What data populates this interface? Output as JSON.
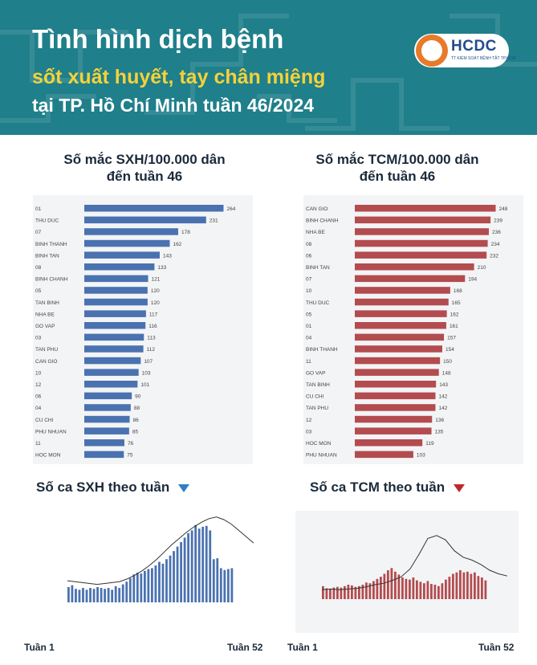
{
  "header": {
    "line1": "Tình hình dịch bệnh",
    "line2": "sốt xuất huyết, tay chân miệng",
    "line3": "tại TP. Hồ Chí Minh tuần 46/2024",
    "logo_text": "HCDC",
    "logo_subtext": "TT KIỂM SOÁT BỆNH TẬT TP.HCM"
  },
  "sections": {
    "sxh_rate_title_1": "Số mắc SXH/100.000 dân",
    "sxh_rate_title_2": "đến tuần 46",
    "tcm_rate_title_1": "Số mắc TCM/100.000 dân",
    "tcm_rate_title_2": "đến tuần 46",
    "sxh_weekly_title": "Số ca SXH theo tuần",
    "tcm_weekly_title": "Số ca TCM theo tuần",
    "week_start": "Tuần 1",
    "week_end": "Tuần 52"
  },
  "colors": {
    "header_bg": "#1f7f8a",
    "title_yellow": "#f4d23a",
    "sxh_blue": "#4a72b0",
    "tcm_red": "#b34c4f",
    "trend_line": "#333333"
  },
  "chart_data": [
    {
      "type": "bar",
      "orientation": "horizontal",
      "categories": [
        "01",
        "THU DUC",
        "07",
        "BINH THANH",
        "BINH TAN",
        "08",
        "BINH CHANH",
        "05",
        "TAN BINH",
        "NHA BE",
        "GO VAP",
        "03",
        "TAN PHU",
        "CAN GIO",
        "10",
        "12",
        "06",
        "04",
        "CU CHI",
        "PHU NHUAN",
        "11",
        "HOC MON"
      ],
      "values": [
        264,
        231,
        178,
        162,
        143,
        133,
        121,
        120,
        120,
        117,
        116,
        113,
        112,
        107,
        103,
        101,
        90,
        88,
        86,
        85,
        76,
        75
      ],
      "color": "#4a72b0",
      "xlim": [
        0,
        280
      ],
      "grid": false
    },
    {
      "type": "bar",
      "orientation": "horizontal",
      "categories": [
        "CAN GIO",
        "BINH CHANH",
        "NHA BE",
        "08",
        "06",
        "BINH TAN",
        "07",
        "10",
        "THU DUC",
        "05",
        "01",
        "04",
        "BINH THANH",
        "11",
        "GO VAP",
        "TAN BINH",
        "CU CHI",
        "TAN PHU",
        "12",
        "03",
        "HOC MON",
        "PHU NHUAN"
      ],
      "values": [
        248,
        239,
        236,
        234,
        232,
        210,
        194,
        168,
        165,
        162,
        161,
        157,
        154,
        150,
        148,
        143,
        142,
        142,
        136,
        135,
        119,
        103
      ],
      "color": "#b34c4f",
      "xlim": [
        0,
        260
      ],
      "grid": false
    },
    {
      "type": "bar",
      "x": [
        1,
        2,
        3,
        4,
        5,
        6,
        7,
        8,
        9,
        10,
        11,
        12,
        13,
        14,
        15,
        16,
        17,
        18,
        19,
        20,
        21,
        22,
        23,
        24,
        25,
        26,
        27,
        28,
        29,
        30,
        31,
        32,
        33,
        34,
        35,
        36,
        37,
        38,
        39,
        40,
        41,
        42,
        43,
        44,
        45,
        46
      ],
      "values": [
        17,
        19,
        15,
        14,
        16,
        14,
        16,
        15,
        17,
        16,
        15,
        16,
        14,
        18,
        16,
        20,
        23,
        27,
        31,
        33,
        32,
        35,
        37,
        38,
        41,
        45,
        43,
        48,
        52,
        57,
        62,
        67,
        72,
        77,
        80,
        86,
        82,
        84,
        85,
        80,
        48,
        49,
        38,
        36,
        37,
        38
      ],
      "color": "#4a72b0",
      "trend_line": [
        24,
        23,
        22,
        21,
        20,
        21,
        22,
        23,
        26,
        30,
        35,
        41,
        48,
        56,
        64,
        71,
        78,
        84,
        89,
        93,
        95,
        92,
        87,
        80,
        73,
        66
      ],
      "ylim": [
        0,
        100
      ]
    },
    {
      "type": "bar",
      "x": [
        1,
        2,
        3,
        4,
        5,
        6,
        7,
        8,
        9,
        10,
        11,
        12,
        13,
        14,
        15,
        16,
        17,
        18,
        19,
        20,
        21,
        22,
        23,
        24,
        25,
        26,
        27,
        28,
        29,
        30,
        31,
        32,
        33,
        34,
        35,
        36,
        37,
        38,
        39,
        40,
        41,
        42,
        43,
        44,
        45,
        46
      ],
      "values": [
        18,
        15,
        14,
        16,
        17,
        16,
        18,
        20,
        19,
        17,
        18,
        20,
        23,
        22,
        25,
        28,
        31,
        35,
        40,
        43,
        38,
        34,
        30,
        28,
        27,
        30,
        26,
        24,
        22,
        25,
        21,
        20,
        18,
        22,
        27,
        31,
        35,
        37,
        40,
        37,
        38,
        35,
        37,
        32,
        30,
        26
      ],
      "color": "#b34c4f",
      "trend_line": [
        13,
        14,
        13,
        14,
        15,
        17,
        20,
        22,
        26,
        31,
        42,
        62,
        84,
        88,
        82,
        67,
        58,
        54,
        48,
        40,
        35,
        32
      ],
      "ylim": [
        0,
        100
      ]
    }
  ]
}
